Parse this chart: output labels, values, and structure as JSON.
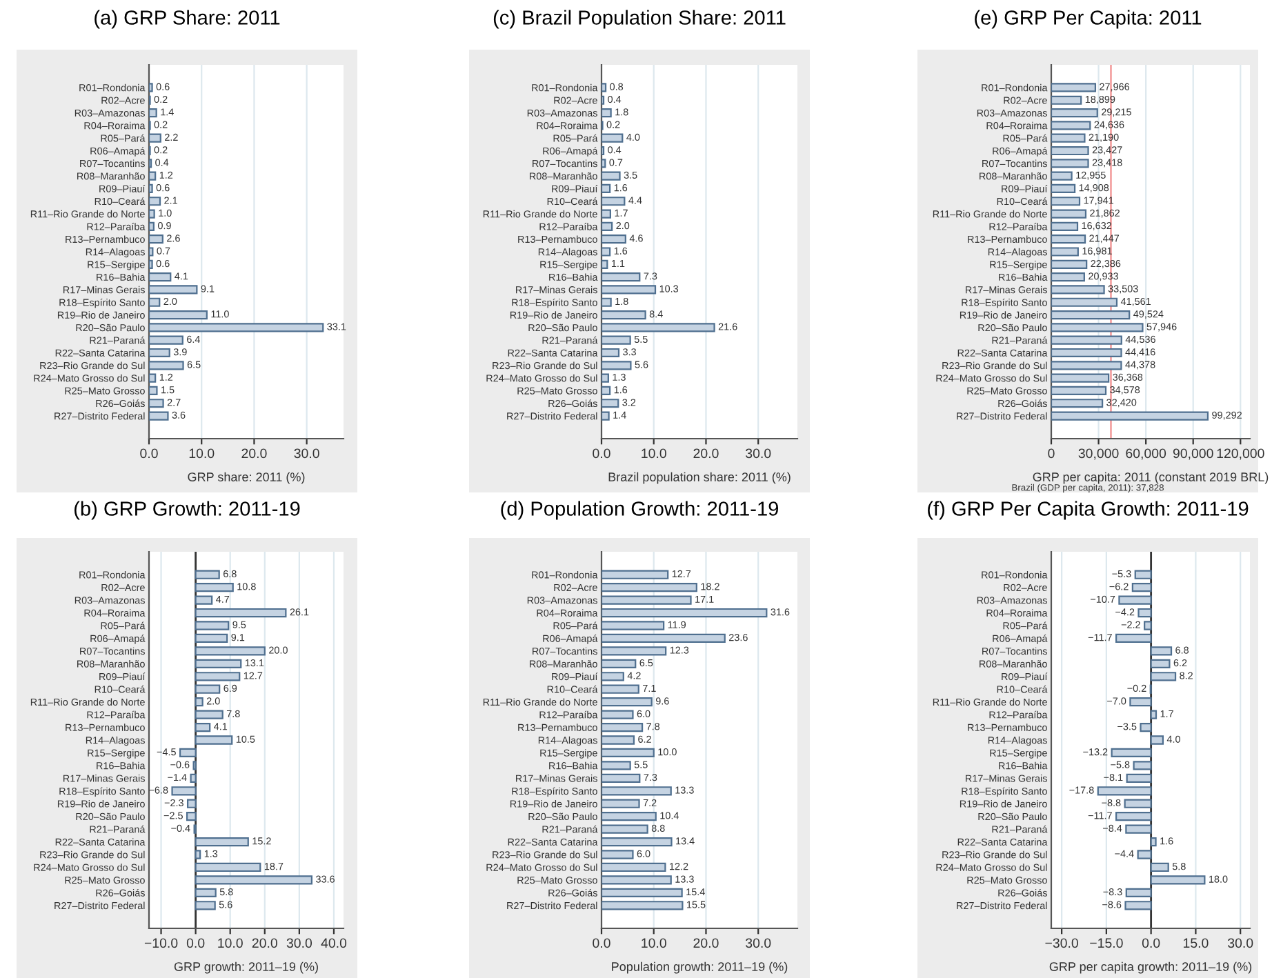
{
  "chart_data": [
    {
      "type": "bar",
      "orientation": "horizontal",
      "title": "(a) GRP Share: 2011",
      "xlabel": "GRP share: 2011 (%)",
      "grid": "x",
      "color": "#c5d3e2",
      "categories": [
        "R01–Rondonia",
        "R02–Acre",
        "R03–Amazonas",
        "R04–Roraima",
        "R05–Pará",
        "R06–Amapá",
        "R07–Tocantins",
        "R08–Maranhão",
        "R09–Piauí",
        "R10–Ceará",
        "R11–Rio Grande do Norte",
        "R12–Paraíba",
        "R13–Pernambuco",
        "R14–Alagoas",
        "R15–Sergipe",
        "R16–Bahia",
        "R17–Minas Gerais",
        "R18–Espírito Santo",
        "R19–Rio de Janeiro",
        "R20–São Paulo",
        "R21–Paraná",
        "R22–Santa Catarina",
        "R23–Rio Grande do Sul",
        "R24–Mato Grosso do Sul",
        "R25–Mato Grosso",
        "R26–Goiás",
        "R27–Distrito Federal"
      ],
      "values": [
        0.6,
        0.2,
        1.4,
        0.2,
        2.2,
        0.2,
        0.4,
        1.2,
        0.6,
        2.1,
        1.0,
        0.9,
        2.6,
        0.7,
        0.6,
        4.1,
        9.1,
        2.0,
        11.0,
        33.1,
        6.4,
        3.9,
        6.5,
        1.2,
        1.5,
        2.7,
        3.6
      ],
      "value_labels": [
        "0.6",
        "0.2",
        "1.4",
        "0.2",
        "2.2",
        "0.2",
        "0.4",
        "1.2",
        "0.6",
        "2.1",
        "1.0",
        "0.9",
        "2.6",
        "0.7",
        "0.6",
        "4.1",
        "9.1",
        "2.0",
        "11.0",
        "33.1",
        "6.4",
        "3.9",
        "6.5",
        "1.2",
        "1.5",
        "2.7",
        "3.6"
      ],
      "xlim": [
        0,
        37
      ],
      "xticks": [
        {
          "value": 0,
          "label": "0.0"
        },
        {
          "value": 10,
          "label": "10.0"
        },
        {
          "value": 20,
          "label": "20.0"
        },
        {
          "value": 30,
          "label": "30.0"
        }
      ]
    },
    {
      "type": "bar",
      "orientation": "horizontal",
      "title": "(c) Brazil Population Share: 2011",
      "xlabel": "Brazil population share: 2011 (%)",
      "grid": "x",
      "color": "#c5d3e2",
      "categories": [
        "R01–Rondonia",
        "R02–Acre",
        "R03–Amazonas",
        "R04–Roraima",
        "R05–Pará",
        "R06–Amapá",
        "R07–Tocantins",
        "R08–Maranhão",
        "R09–Piauí",
        "R10–Ceará",
        "R11–Rio Grande do Norte",
        "R12–Paraíba",
        "R13–Pernambuco",
        "R14–Alagoas",
        "R15–Sergipe",
        "R16–Bahia",
        "R17–Minas Gerais",
        "R18–Espírito Santo",
        "R19–Rio de Janeiro",
        "R20–São Paulo",
        "R21–Paraná",
        "R22–Santa Catarina",
        "R23–Rio Grande do Sul",
        "R24–Mato Grosso do Sul",
        "R25–Mato Grosso",
        "R26–Goiás",
        "R27–Distrito Federal"
      ],
      "values": [
        0.8,
        0.4,
        1.8,
        0.2,
        4.0,
        0.4,
        0.7,
        3.5,
        1.6,
        4.4,
        1.7,
        2.0,
        4.6,
        1.6,
        1.1,
        7.3,
        10.3,
        1.8,
        8.4,
        21.6,
        5.5,
        3.3,
        5.6,
        1.3,
        1.6,
        3.2,
        1.4
      ],
      "value_labels": [
        "0.8",
        "0.4",
        "1.8",
        "0.2",
        "4.0",
        "0.4",
        "0.7",
        "3.5",
        "1.6",
        "4.4",
        "1.7",
        "2.0",
        "4.6",
        "1.6",
        "1.1",
        "7.3",
        "10.3",
        "1.8",
        "8.4",
        "21.6",
        "5.5",
        "3.3",
        "5.6",
        "1.3",
        "1.6",
        "3.2",
        "1.4"
      ],
      "xlim": [
        0,
        37.5
      ],
      "xticks": [
        {
          "value": 0,
          "label": "0.0"
        },
        {
          "value": 10,
          "label": "10.0"
        },
        {
          "value": 20,
          "label": "20.0"
        },
        {
          "value": 30,
          "label": "30.0"
        }
      ]
    },
    {
      "type": "bar",
      "orientation": "horizontal",
      "title": "(e) GRP Per Capita: 2011",
      "xlabel": "GRP per capita: 2011 (constant 2019 BRL)",
      "grid": "x",
      "color": "#c5d3e2",
      "categories": [
        "R01–Rondonia",
        "R02–Acre",
        "R03–Amazonas",
        "R04–Roraima",
        "R05–Pará",
        "R06–Amapá",
        "R07–Tocantins",
        "R08–Maranhão",
        "R09–Piauí",
        "R10–Ceará",
        "R11–Rio Grande do Norte",
        "R12–Paraíba",
        "R13–Pernambuco",
        "R14–Alagoas",
        "R15–Sergipe",
        "R16–Bahia",
        "R17–Minas Gerais",
        "R18–Espírito Santo",
        "R19–Rio de Janeiro",
        "R20–São Paulo",
        "R21–Paraná",
        "R22–Santa Catarina",
        "R23–Rio Grande do Sul",
        "R24–Mato Grosso do Sul",
        "R25–Mato Grosso",
        "R26–Goiás",
        "R27–Distrito Federal"
      ],
      "values": [
        27966,
        18899,
        29215,
        24636,
        21190,
        23427,
        23418,
        12955,
        14908,
        17941,
        21862,
        16632,
        21447,
        16981,
        22386,
        20933,
        33503,
        41561,
        49524,
        57946,
        44536,
        44416,
        44378,
        36368,
        34578,
        32420,
        99292
      ],
      "value_labels": [
        "27,966",
        "18,899",
        "29,215",
        "24,636",
        "21,190",
        "23,427",
        "23,418",
        "12,955",
        "14,908",
        "17,941",
        "21,862",
        "16,632",
        "21,447",
        "16,981",
        "22,386",
        "20,933",
        "33,503",
        "41,561",
        "49,524",
        "57,946",
        "44,536",
        "44,416",
        "44,378",
        "36,368",
        "34,578",
        "32,420",
        "99,292"
      ],
      "xlim": [
        0,
        126000
      ],
      "xticks": [
        0,
        {
          "value": 30000,
          "label": "30,000"
        },
        {
          "value": 60000,
          "label": "60,000"
        },
        {
          "value": 90000,
          "label": "90,000"
        },
        {
          "value": 120000,
          "label": "120,000"
        }
      ],
      "ref_lines": [
        {
          "axis": "x",
          "value": 37828,
          "color": "#f4a3a3"
        }
      ],
      "annotations": [
        "Brazil (GDP per capita, 2011): 37,828"
      ]
    },
    {
      "type": "bar",
      "orientation": "horizontal",
      "title": "(b) GRP Growth: 2011-19",
      "xlabel": "GRP growth: 2011–19 (%)",
      "grid": "x",
      "color": "#c5d3e2",
      "categories": [
        "R01–Rondonia",
        "R02–Acre",
        "R03–Amazonas",
        "R04–Roraima",
        "R05–Pará",
        "R06–Amapá",
        "R07–Tocantins",
        "R08–Maranhão",
        "R09–Piauí",
        "R10–Ceará",
        "R11–Rio Grande do Norte",
        "R12–Paraíba",
        "R13–Pernambuco",
        "R14–Alagoas",
        "R15–Sergipe",
        "R16–Bahia",
        "R17–Minas Gerais",
        "R18–Espírito Santo",
        "R19–Rio de Janeiro",
        "R20–São Paulo",
        "R21–Paraná",
        "R22–Santa Catarina",
        "R23–Rio Grande do Sul",
        "R24–Mato Grosso do Sul",
        "R25–Mato Grosso",
        "R26–Goiás",
        "R27–Distrito Federal"
      ],
      "values": [
        6.8,
        10.8,
        4.7,
        26.1,
        9.5,
        9.1,
        20.0,
        13.1,
        12.7,
        6.9,
        2.0,
        7.8,
        4.1,
        10.5,
        -4.5,
        -0.6,
        -1.4,
        -6.8,
        -2.3,
        -2.5,
        -0.4,
        15.2,
        1.3,
        18.7,
        33.6,
        5.8,
        5.6
      ],
      "value_labels": [
        "6.8",
        "10.8",
        "4.7",
        "26.1",
        "9.5",
        "9.1",
        "20.0",
        "13.1",
        "12.7",
        "6.9",
        "2.0",
        "7.8",
        "4.1",
        "10.5",
        "−4.5",
        "−0.6",
        "−1.4",
        "−6.8",
        "−2.3",
        "−2.5",
        "−0.4",
        "15.2",
        "1.3",
        "18.7",
        "33.6",
        "5.8",
        "5.6"
      ],
      "xlim": [
        -13.5,
        42.8
      ],
      "xticks": [
        {
          "value": -10,
          "label": "−10.0"
        },
        {
          "value": 0,
          "label": "0.0"
        },
        {
          "value": 10,
          "label": "10.0"
        },
        {
          "value": 20,
          "label": "20.0"
        },
        {
          "value": 30,
          "label": "30.0"
        },
        {
          "value": 40,
          "label": "40.0"
        }
      ],
      "ref_lines": [
        {
          "axis": "x",
          "value": 0,
          "color": "#333333"
        }
      ]
    },
    {
      "type": "bar",
      "orientation": "horizontal",
      "title": "(d) Population Growth: 2011-19",
      "xlabel": "Population growth: 2011–19 (%)",
      "grid": "x",
      "color": "#c5d3e2",
      "categories": [
        "R01–Rondonia",
        "R02–Acre",
        "R03–Amazonas",
        "R04–Roraima",
        "R05–Pará",
        "R06–Amapá",
        "R07–Tocantins",
        "R08–Maranhão",
        "R09–Piauí",
        "R10–Ceará",
        "R11–Rio Grande do Norte",
        "R12–Paraíba",
        "R13–Pernambuco",
        "R14–Alagoas",
        "R15–Sergipe",
        "R16–Bahia",
        "R17–Minas Gerais",
        "R18–Espírito Santo",
        "R19–Rio de Janeiro",
        "R20–São Paulo",
        "R21–Paraná",
        "R22–Santa Catarina",
        "R23–Rio Grande do Sul",
        "R24–Mato Grosso do Sul",
        "R25–Mato Grosso",
        "R26–Goiás",
        "R27–Distrito Federal"
      ],
      "values": [
        12.7,
        18.2,
        17.1,
        31.6,
        11.9,
        23.6,
        12.3,
        6.5,
        4.2,
        7.1,
        9.6,
        6.0,
        7.8,
        6.2,
        10.0,
        5.5,
        7.3,
        13.3,
        7.2,
        10.4,
        8.8,
        13.4,
        6.0,
        12.2,
        13.3,
        15.4,
        15.5
      ],
      "value_labels": [
        "12.7",
        "18.2",
        "17.1",
        "31.6",
        "11.9",
        "23.6",
        "12.3",
        "6.5",
        "4.2",
        "7.1",
        "9.6",
        "6.0",
        "7.8",
        "6.2",
        "10.0",
        "5.5",
        "7.3",
        "13.3",
        "7.2",
        "10.4",
        "8.8",
        "13.4",
        "6.0",
        "12.2",
        "13.3",
        "15.4",
        "15.5"
      ],
      "xlim": [
        0,
        37.5
      ],
      "xticks": [
        {
          "value": 0,
          "label": "0.0"
        },
        {
          "value": 10,
          "label": "10.0"
        },
        {
          "value": 20,
          "label": "20.0"
        },
        {
          "value": 30,
          "label": "30.0"
        }
      ]
    },
    {
      "type": "bar",
      "orientation": "horizontal",
      "title": "(f) GRP Per Capita Growth: 2011-19",
      "xlabel": "GRP per capita growth: 2011–19 (%)",
      "grid": "x",
      "color": "#c5d3e2",
      "categories": [
        "R01–Rondonia",
        "R02–Acre",
        "R03–Amazonas",
        "R04–Roraima",
        "R05–Pará",
        "R06–Amapá",
        "R07–Tocantins",
        "R08–Maranhão",
        "R09–Piauí",
        "R10–Ceará",
        "R11–Rio Grande do Norte",
        "R12–Paraíba",
        "R13–Pernambuco",
        "R14–Alagoas",
        "R15–Sergipe",
        "R16–Bahia",
        "R17–Minas Gerais",
        "R18–Espírito Santo",
        "R19–Rio de Janeiro",
        "R20–São Paulo",
        "R21–Paraná",
        "R22–Santa Catarina",
        "R23–Rio Grande do Sul",
        "R24–Mato Grosso do Sul",
        "R25–Mato Grosso",
        "R26–Goiás",
        "R27–Distrito Federal"
      ],
      "values": [
        -5.3,
        -6.2,
        -10.7,
        -4.2,
        -2.2,
        -11.7,
        6.8,
        6.2,
        8.2,
        -0.2,
        -7.0,
        1.7,
        -3.5,
        4.0,
        -13.2,
        -5.8,
        -8.1,
        -17.8,
        -8.8,
        -11.7,
        -8.4,
        1.6,
        -4.4,
        5.8,
        18.0,
        -8.3,
        -8.6
      ],
      "value_labels": [
        "−5.3",
        "−6.2",
        "−10.7",
        "−4.2",
        "−2.2",
        "−11.7",
        "6.8",
        "6.2",
        "8.2",
        "−0.2",
        "−7.0",
        "1.7",
        "−3.5",
        "4.0",
        "−13.2",
        "−5.8",
        "−8.1",
        "−17.8",
        "−8.8",
        "−11.7",
        "−8.4",
        "1.6",
        "−4.4",
        "5.8",
        "18.0",
        "−8.3",
        "−8.6"
      ],
      "xlim": [
        -33.5,
        33.2
      ],
      "xticks": [
        {
          "value": -30,
          "label": "−30.0"
        },
        {
          "value": -15,
          "label": "−15.0"
        },
        {
          "value": 0,
          "label": "0.0"
        },
        {
          "value": 15,
          "label": "15.0"
        },
        {
          "value": 30,
          "label": "30.0"
        }
      ],
      "ref_lines": [
        {
          "axis": "x",
          "value": 0,
          "color": "#333333"
        }
      ]
    }
  ]
}
